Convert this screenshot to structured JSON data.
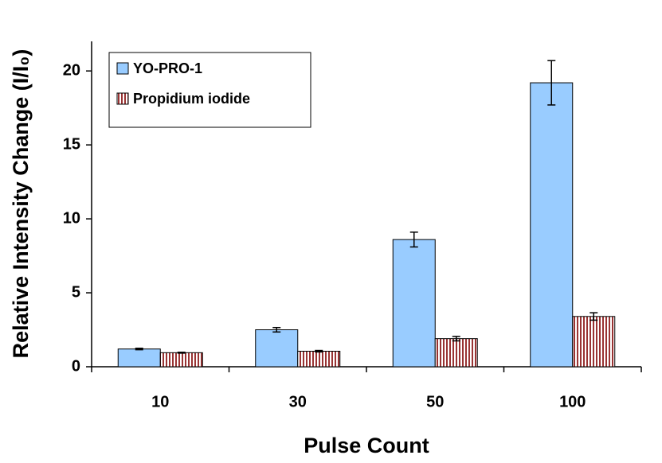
{
  "chart_data": {
    "type": "bar",
    "xlabel": "Pulse Count",
    "ylabel": "Relative Intensity Change (I/I₀)",
    "categories": [
      "10",
      "30",
      "50",
      "100"
    ],
    "series": [
      {
        "name": "YO-PRO-1",
        "color": "#99ccff",
        "pattern": "solid",
        "values": [
          1.2,
          2.5,
          8.6,
          19.2
        ],
        "errors": [
          0.05,
          0.15,
          0.5,
          1.5
        ]
      },
      {
        "name": "Propidium iodide",
        "color": "#993333",
        "pattern": "vertical-stripes",
        "values": [
          0.95,
          1.05,
          1.9,
          3.4
        ],
        "errors": [
          0.03,
          0.05,
          0.15,
          0.25
        ]
      }
    ],
    "ylim": [
      0,
      22
    ],
    "yticks": [
      0,
      5,
      10,
      15,
      20
    ],
    "grid": false,
    "legend": "upper left"
  }
}
